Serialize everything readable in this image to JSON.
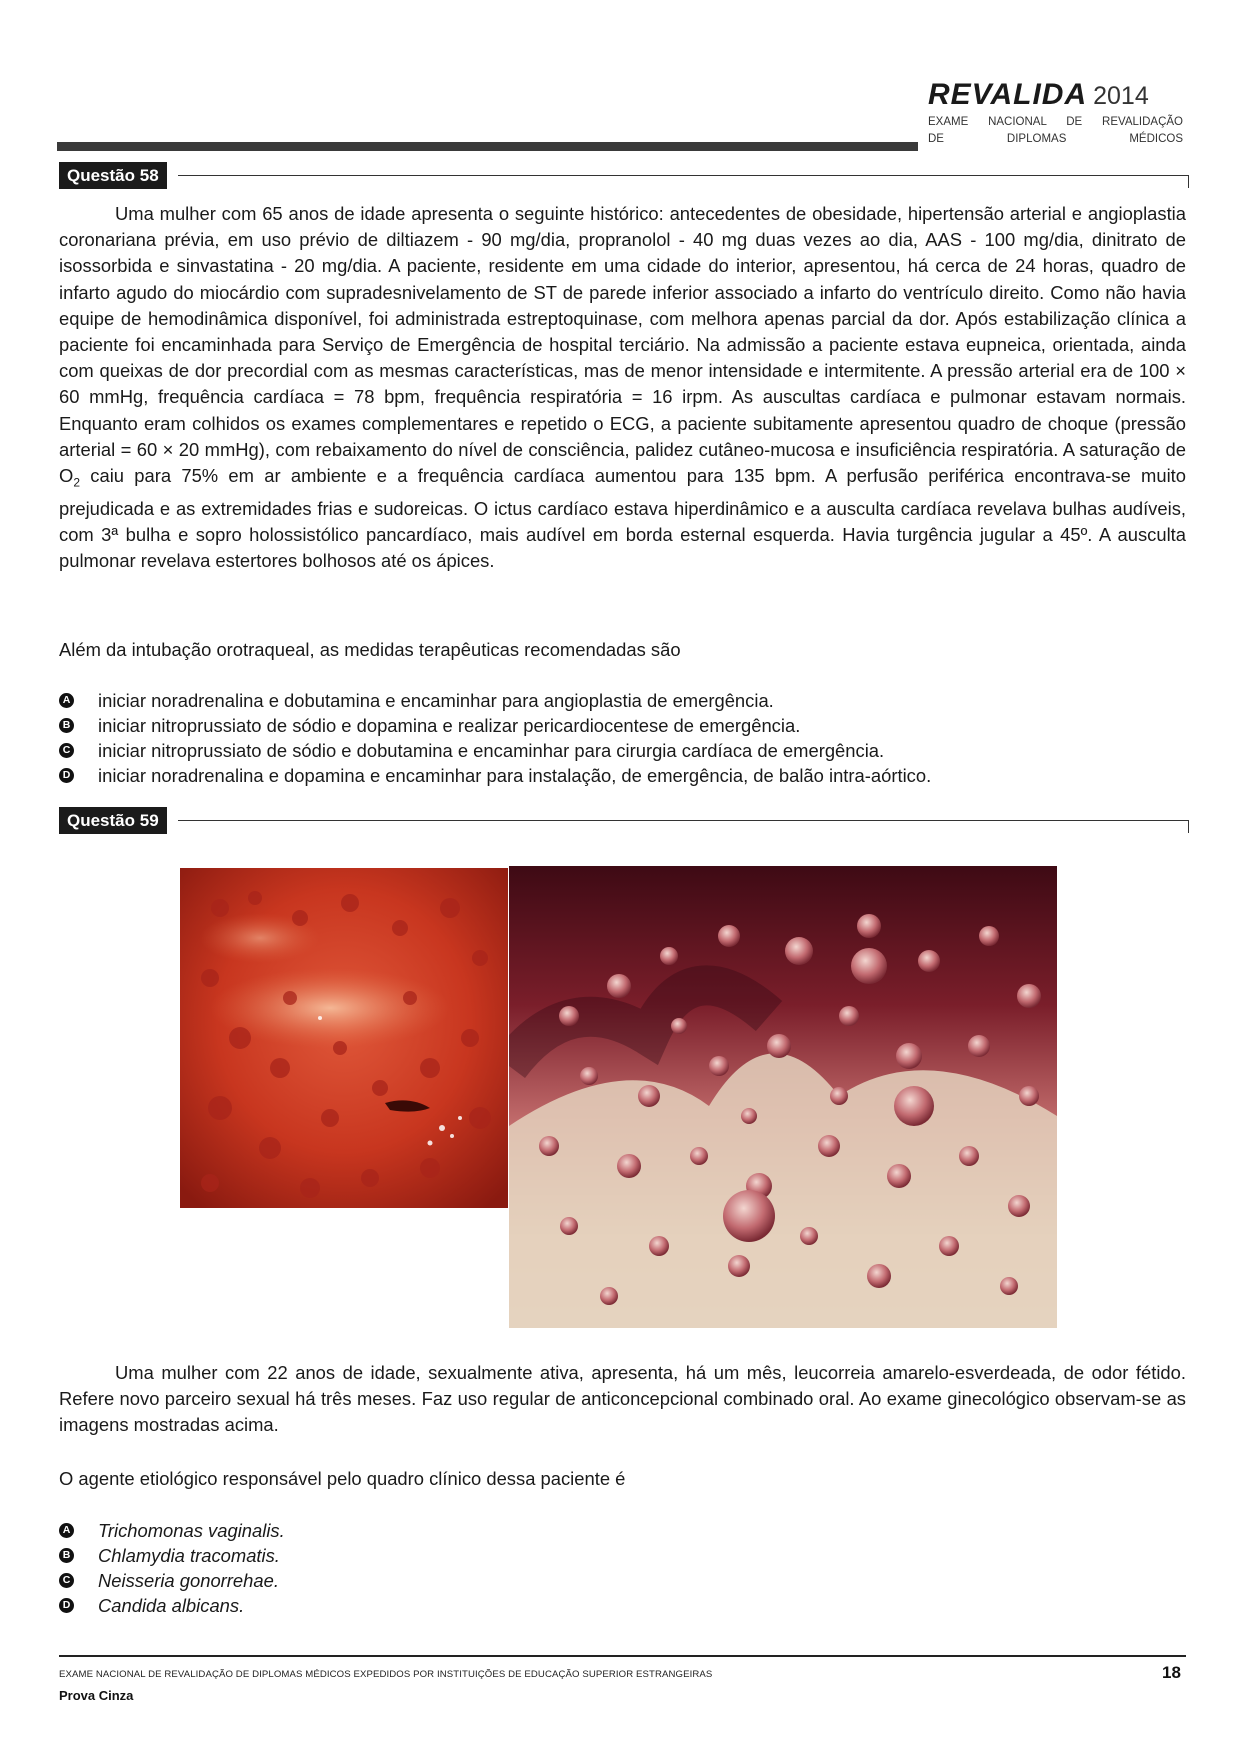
{
  "header": {
    "title": "REVALIDA",
    "year": "2014",
    "subtitle_line1": "EXAME NACIONAL DE REVALIDAÇÃO",
    "subtitle_line2": "DE DIPLOMAS MÉDICOS"
  },
  "q58": {
    "label": "Questão 58",
    "stem_before": "Uma mulher com 65 anos de idade apresenta o seguinte histórico: antecedentes de obesidade, hipertensão arterial e angioplastia coronariana prévia, em uso prévio de diltiazem - 90 mg/dia, propranolol - 40 mg duas vezes ao dia, AAS - 100 mg/dia, dinitrato de isossorbida e sinvastatina - 20 mg/dia. A paciente, residente em uma cidade do interior, apresentou, há cerca de 24 horas, quadro de infarto agudo do miocárdio com supradesnivelamento de ST de parede inferior associado a infarto do ventrículo direito. Como não havia equipe de hemodinâmica disponível, foi administrada estreptoquinase, com melhora apenas parcial da dor. Após estabilização clínica a paciente foi encaminhada para Serviço de Emergência de hospital terciário. Na admissão a paciente estava eupneica, orientada, ainda com queixas de dor precordial com as mesmas características, mas de menor intensidade e intermitente. A pressão arterial era de 100 × 60 mmHg, frequência cardíaca = 78 bpm, frequência respiratória = 16 irpm. As auscultas cardíaca e pulmonar estavam normais. Enquanto eram colhidos os exames complementares e repetido o ECG, a paciente subitamente apresentou quadro de choque (pressão arterial = 60 × 20 mmHg), com rebaixamento do nível de consciência, palidez cutâneo-mucosa e insuficiência respiratória. A saturação de O",
    "stem_sub": "2",
    "stem_after": " caiu para 75% em ar ambiente e a frequência cardíaca aumentou para 135 bpm. A perfusão periférica encontrava-se muito prejudicada e as extremidades frias e sudoreicas. O ictus cardíaco estava hiperdinâmico e a ausculta cardíaca revelava bulhas audíveis, com 3ª bulha e sopro holossistólico pancardíaco, mais audível em borda esternal esquerda. Havia turgência jugular a 45º. A ausculta pulmonar revelava estertores bolhosos até os ápices.",
    "question": "Além da intubação orotraqueal, as medidas terapêuticas recomendadas são",
    "options": [
      {
        "letter": "A",
        "text": "iniciar noradrenalina e dobutamina e encaminhar para angioplastia de emergência."
      },
      {
        "letter": "B",
        "text": "iniciar nitroprussiato de sódio e dopamina e realizar pericardiocentese de emergência."
      },
      {
        "letter": "C",
        "text": "iniciar nitroprussiato de sódio e dobutamina e encaminhar para cirurgia cardíaca de emergência."
      },
      {
        "letter": "D",
        "text": "iniciar noradrenalina e dopamina e encaminhar para instalação, de emergência, de balão intra-aórtico."
      }
    ]
  },
  "q59": {
    "label": "Questão 59",
    "stem": "Uma mulher com 22 anos de idade, sexualmente ativa, apresenta, há um mês, leucorreia amarelo-esverdeada, de odor fétido. Refere novo parceiro sexual há três meses. Faz uso regular de anticoncepcional combinado oral. Ao exame ginecológico observam-se as imagens mostradas acima.",
    "question": "O agente etiológico responsável pelo quadro clínico dessa paciente é",
    "options": [
      {
        "letter": "A",
        "text": "Trichomonas vaginalis."
      },
      {
        "letter": "B",
        "text": "Chlamydia tracomatis."
      },
      {
        "letter": "C",
        "text": "Neisseria gonorrehae."
      },
      {
        "letter": "D",
        "text": "Candida albicans."
      }
    ]
  },
  "footer": {
    "text": "EXAME NACIONAL DE REVALIDAÇÃO DE DIPLOMAS MÉDICOS EXPEDIDOS POR INSTITUIÇÕES DE EDUCAÇÃO SUPERIOR ESTRANGEIRAS",
    "prova": "Prova Cinza",
    "page": "18"
  }
}
